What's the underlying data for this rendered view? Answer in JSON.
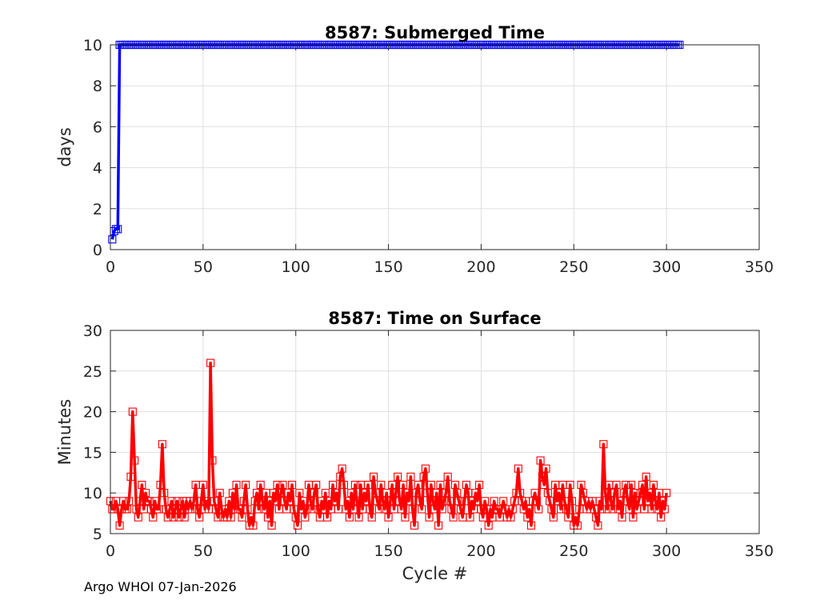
{
  "chart_data": [
    {
      "type": "line",
      "title": "8587: Submerged Time",
      "xlabel": "",
      "ylabel": "days",
      "xlim": [
        0,
        350
      ],
      "ylim": [
        0,
        10
      ],
      "xticks": [
        0,
        50,
        100,
        150,
        200,
        250,
        300,
        350
      ],
      "yticks": [
        0,
        2,
        4,
        6,
        8,
        10
      ],
      "grid": true,
      "color": "#0000ff",
      "marker": "square",
      "series": [
        {
          "x_start": 1,
          "values": [
            0.5,
            0.9,
            1.0,
            1.0,
            10,
            10,
            10,
            10,
            10,
            10,
            10,
            10,
            10,
            10,
            10,
            10,
            10,
            10,
            10,
            10,
            10,
            10,
            10,
            10,
            10,
            10,
            10,
            10,
            10,
            10,
            10,
            10,
            10,
            10,
            10,
            10,
            10,
            10,
            10,
            10,
            10,
            10,
            10,
            10,
            10,
            10,
            10,
            10,
            10,
            10,
            10,
            10,
            10,
            10,
            10,
            10,
            10,
            10,
            10,
            10,
            10,
            10,
            10,
            10,
            10,
            10,
            10,
            10,
            10,
            10,
            10,
            10,
            10,
            10,
            10,
            10,
            10,
            10,
            10,
            10,
            10,
            10,
            10,
            10,
            10,
            10,
            10,
            10,
            10,
            10,
            10,
            10,
            10,
            10,
            10,
            10,
            10,
            10,
            10,
            10,
            10,
            10,
            10,
            10,
            10,
            10,
            10,
            10,
            10,
            10,
            10,
            10,
            10,
            10,
            10,
            10,
            10,
            10,
            10,
            10,
            10,
            10,
            10,
            10,
            10,
            10,
            10,
            10,
            10,
            10,
            10,
            10,
            10,
            10,
            10,
            10,
            10,
            10,
            10,
            10,
            10,
            10,
            10,
            10,
            10,
            10,
            10,
            10,
            10,
            10,
            10,
            10,
            10,
            10,
            10,
            10,
            10,
            10,
            10,
            10,
            10,
            10,
            10,
            10,
            10,
            10,
            10,
            10,
            10,
            10,
            10,
            10,
            10,
            10,
            10,
            10,
            10,
            10,
            10,
            10,
            10,
            10,
            10,
            10,
            10,
            10,
            10,
            10,
            10,
            10,
            10,
            10,
            10,
            10,
            10,
            10,
            10,
            10,
            10,
            10,
            10,
            10,
            10,
            10,
            10,
            10,
            10,
            10,
            10,
            10,
            10,
            10,
            10,
            10,
            10,
            10,
            10,
            10,
            10,
            10,
            10,
            10,
            10,
            10,
            10,
            10,
            10,
            10,
            10,
            10,
            10,
            10,
            10,
            10,
            10,
            10,
            10,
            10,
            10,
            10,
            10,
            10,
            10,
            10,
            10,
            10,
            10,
            10,
            10,
            10,
            10,
            10,
            10,
            10,
            10,
            10,
            10,
            10,
            10,
            10,
            10,
            10,
            10,
            10,
            10,
            10,
            10,
            10,
            10,
            10,
            10,
            10,
            10,
            10,
            10,
            10,
            10,
            10,
            10,
            10,
            10,
            10,
            10,
            10,
            10,
            10,
            10,
            10,
            10,
            10,
            10,
            10,
            10,
            10,
            10,
            10,
            10,
            10,
            10,
            10,
            10,
            10,
            10,
            10,
            10,
            10,
            10
          ]
        }
      ]
    },
    {
      "type": "line",
      "title": "8587: Time on Surface",
      "xlabel": "Cycle #",
      "ylabel": "Minutes",
      "xlim": [
        0,
        350
      ],
      "ylim": [
        5,
        30
      ],
      "xticks": [
        0,
        50,
        100,
        150,
        200,
        250,
        300,
        350
      ],
      "yticks": [
        5,
        10,
        15,
        20,
        25,
        30
      ],
      "grid": true,
      "color": "#ff0000",
      "marker": "square",
      "series": [
        {
          "x_start": 0,
          "values": [
            9,
            8,
            8,
            9,
            8,
            6,
            8,
            9,
            8,
            8,
            9,
            12,
            20,
            14,
            8,
            7,
            9,
            11,
            8,
            10,
            9,
            9,
            8,
            7,
            9,
            8,
            8,
            11,
            16,
            10,
            8,
            7,
            8,
            9,
            7,
            8,
            9,
            7,
            8,
            9,
            7,
            9,
            8,
            9,
            8,
            9,
            11,
            8,
            7,
            9,
            11,
            8,
            9,
            8,
            26,
            14,
            9,
            8,
            7,
            10,
            8,
            7,
            8,
            7,
            9,
            7,
            10,
            8,
            11,
            8,
            8,
            7,
            9,
            11,
            8,
            6,
            7,
            6,
            9,
            10,
            8,
            11,
            9,
            8,
            10,
            7,
            9,
            6,
            10,
            9,
            11,
            8,
            10,
            11,
            9,
            8,
            10,
            9,
            11,
            8,
            7,
            6,
            10,
            8,
            9,
            7,
            8,
            11,
            9,
            8,
            10,
            11,
            8,
            7,
            9,
            8,
            10,
            7,
            9,
            8,
            11,
            9,
            10,
            8,
            12,
            13,
            11,
            8,
            9,
            7,
            10,
            8,
            11,
            9,
            7,
            11,
            8,
            10,
            9,
            11,
            8,
            7,
            12,
            10,
            9,
            8,
            11,
            9,
            8,
            10,
            7,
            9,
            11,
            8,
            10,
            12,
            9,
            8,
            11,
            7,
            10,
            9,
            12,
            8,
            6,
            10,
            11,
            9,
            8,
            12,
            13,
            10,
            7,
            11,
            9,
            8,
            10,
            6,
            11,
            8,
            9,
            10,
            12,
            9,
            8,
            7,
            11,
            10,
            9,
            8,
            7,
            9,
            11,
            10,
            7,
            9,
            8,
            10,
            9,
            11,
            8,
            7,
            9,
            8,
            6,
            8,
            7,
            9,
            8,
            8,
            7,
            8,
            9,
            8,
            7,
            8,
            7,
            8,
            9,
            10,
            13,
            10,
            9,
            8,
            9,
            7,
            8,
            6,
            9,
            10,
            9,
            8,
            14,
            12,
            11,
            13,
            10,
            9,
            8,
            7,
            11,
            9,
            10,
            8,
            11,
            9,
            8,
            7,
            11,
            9,
            6,
            7,
            6,
            8,
            11,
            10,
            9,
            8,
            9,
            8,
            9,
            8,
            7,
            6,
            9,
            8,
            16,
            10,
            8,
            11,
            9,
            8,
            10,
            11,
            8,
            9,
            7,
            10,
            11,
            9,
            8,
            11,
            7,
            10,
            8,
            9,
            10,
            11,
            8,
            12,
            9,
            10,
            8,
            11,
            9,
            8,
            10,
            7,
            9,
            8,
            10
          ]
        }
      ]
    }
  ],
  "footer": "Argo WHOI 07-Jan-2026"
}
